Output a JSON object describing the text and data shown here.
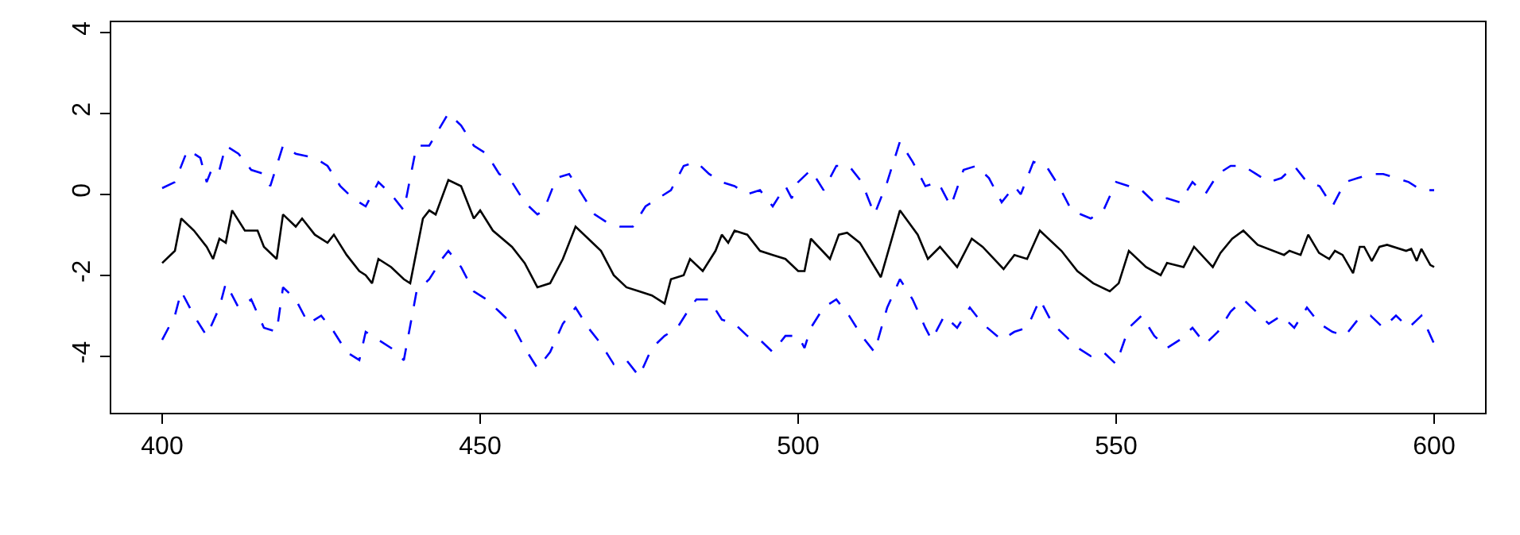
{
  "chart_data": {
    "type": "line",
    "xlim": [
      392,
      608
    ],
    "xticks": [
      400,
      450,
      500,
      550,
      600
    ],
    "ylim": [
      -5.4,
      4.25
    ],
    "yticks": [
      -4,
      -2,
      0,
      2,
      4
    ],
    "marker": "none",
    "series": [
      {
        "color": "#000000",
        "line_style": "solid",
        "x": [
          400,
          402,
          403,
          405,
          407,
          408,
          409,
          410,
          411,
          413,
          415,
          416,
          418,
          419,
          421,
          422,
          424,
          426,
          427,
          429,
          431,
          432,
          433,
          434,
          436,
          438,
          439,
          441,
          442,
          443,
          445,
          447,
          449,
          450,
          452,
          455,
          457,
          459,
          461,
          463,
          465,
          467,
          469,
          471,
          473,
          475,
          477,
          479,
          480,
          482,
          483,
          485,
          487,
          488,
          489,
          490,
          492,
          494,
          496,
          498,
          500,
          501,
          502,
          505,
          506.4,
          507.7,
          509.7,
          513,
          516,
          518.8,
          520.4,
          522.3,
          525,
          527.3,
          529,
          532.3,
          534,
          536,
          538,
          541.4,
          543.9,
          546.4,
          549,
          550.4,
          552,
          554.7,
          557,
          558,
          560.6,
          562.25,
          565.2,
          566.4,
          568.25,
          570,
          572.25,
          576.4,
          577.25,
          579,
          580.2,
          581.9,
          583.5,
          584.4,
          585.6,
          587.25,
          588.3,
          589,
          590.2,
          591.4,
          592.6,
          595.6,
          596.4,
          597.25,
          598,
          599.4,
          600
        ],
        "values": [
          -1.7,
          -1.4,
          -0.6,
          -0.9,
          -1.3,
          -1.6,
          -1.1,
          -1.2,
          -0.4,
          -0.9,
          -0.9,
          -1.3,
          -1.6,
          -0.5,
          -0.8,
          -0.6,
          -1.0,
          -1.2,
          -1.0,
          -1.5,
          -1.9,
          -2.0,
          -2.2,
          -1.6,
          -1.8,
          -2.1,
          -2.2,
          -0.6,
          -0.4,
          -0.5,
          0.35,
          0.2,
          -0.6,
          -0.4,
          -0.9,
          -1.3,
          -1.7,
          -2.3,
          -2.2,
          -1.6,
          -0.8,
          -1.1,
          -1.4,
          -2.0,
          -2.3,
          -2.4,
          -2.5,
          -2.7,
          -2.1,
          -2.0,
          -1.6,
          -1.9,
          -1.4,
          -1.0,
          -1.2,
          -0.9,
          -1.0,
          -1.4,
          -1.5,
          -1.6,
          -1.9,
          -1.9,
          -1.1,
          -1.6,
          -1.0,
          -0.95,
          -1.2,
          -2.05,
          -0.4,
          -1.0,
          -1.6,
          -1.3,
          -1.8,
          -1.1,
          -1.3,
          -1.85,
          -1.5,
          -1.6,
          -0.9,
          -1.4,
          -1.9,
          -2.2,
          -2.4,
          -2.2,
          -1.4,
          -1.8,
          -2.0,
          -1.7,
          -1.8,
          -1.3,
          -1.8,
          -1.45,
          -1.1,
          -0.9,
          -1.25,
          -1.5,
          -1.4,
          -1.5,
          -1.0,
          -1.45,
          -1.6,
          -1.4,
          -1.5,
          -1.95,
          -1.3,
          -1.3,
          -1.65,
          -1.3,
          -1.25,
          -1.4,
          -1.35,
          -1.65,
          -1.35,
          -1.75,
          -1.8
        ]
      },
      {
        "color": "#0000ff",
        "line_style": "dashed",
        "x": [
          400,
          402,
          404,
          406,
          407,
          408,
          409,
          410,
          412,
          414,
          416,
          417,
          419,
          421,
          424,
          426,
          428,
          430,
          432,
          434,
          436,
          438,
          440,
          442,
          445,
          447,
          449,
          451,
          453,
          455,
          457,
          459,
          460,
          462,
          464,
          466,
          468,
          470,
          472,
          474,
          476,
          478,
          480,
          482,
          484,
          486,
          488,
          490,
          492,
          494,
          496,
          498,
          499,
          500,
          502,
          504,
          506,
          508,
          510,
          512,
          514,
          516,
          518,
          520,
          522,
          524,
          526,
          528,
          530,
          532,
          534,
          535,
          537,
          539,
          541,
          543,
          546,
          548,
          550,
          552,
          554,
          556,
          558,
          560,
          562,
          564,
          566,
          568,
          570,
          572,
          574,
          576,
          578,
          580,
          582,
          584,
          586,
          588,
          590,
          592,
          594,
          596,
          598,
          600
        ],
        "values": [
          0.15,
          0.3,
          1.1,
          0.9,
          0.3,
          0.7,
          0.6,
          1.2,
          1.0,
          0.6,
          0.5,
          0.2,
          1.2,
          1.0,
          0.9,
          0.7,
          0.2,
          -0.1,
          -0.3,
          0.3,
          0.0,
          -0.4,
          1.2,
          1.2,
          2.0,
          1.7,
          1.2,
          1.0,
          0.5,
          0.3,
          -0.2,
          -0.5,
          -0.4,
          0.4,
          0.5,
          0.0,
          -0.5,
          -0.7,
          -0.8,
          -0.8,
          -0.3,
          -0.1,
          0.1,
          0.7,
          0.8,
          0.5,
          0.3,
          0.2,
          0.0,
          0.1,
          -0.3,
          0.2,
          -0.1,
          0.3,
          0.6,
          0.1,
          0.7,
          0.7,
          0.3,
          -0.5,
          0.3,
          1.3,
          0.8,
          0.2,
          0.3,
          -0.3,
          0.6,
          0.7,
          0.4,
          -0.2,
          0.2,
          0.0,
          0.8,
          0.7,
          0.2,
          -0.4,
          -0.6,
          -0.4,
          0.3,
          0.2,
          0.1,
          -0.2,
          -0.1,
          -0.2,
          0.3,
          0.0,
          0.5,
          0.7,
          0.7,
          0.5,
          0.3,
          0.4,
          0.7,
          0.3,
          0.2,
          -0.3,
          0.3,
          0.4,
          0.5,
          0.5,
          0.4,
          0.3,
          0.1,
          0.1
        ]
      },
      {
        "color": "#0000ff",
        "line_style": "dashed",
        "x": [
          400,
          402,
          403,
          405,
          407,
          409,
          410,
          412,
          414,
          416,
          418,
          419,
          421,
          423,
          425,
          427,
          429,
          431,
          432,
          434,
          436,
          438,
          440,
          442,
          444,
          445,
          447,
          449,
          451,
          453,
          455,
          457,
          459,
          461,
          463,
          465,
          467,
          469,
          471,
          473,
          475,
          477,
          479,
          481,
          483,
          484,
          486,
          488,
          490,
          492,
          494,
          496,
          498,
          500,
          501,
          502,
          504,
          506,
          508,
          510,
          512,
          514,
          516,
          518,
          520,
          521,
          523,
          525,
          527,
          529,
          532,
          534,
          536,
          538,
          540,
          542,
          544,
          546,
          548,
          550,
          552,
          554,
          556,
          558,
          560,
          562,
          564,
          566,
          568,
          570,
          572,
          574,
          576,
          578,
          580,
          582,
          584,
          586,
          588,
          590,
          592,
          594,
          596,
          598,
          600
        ],
        "values": [
          -3.6,
          -3.0,
          -2.4,
          -3.0,
          -3.5,
          -2.8,
          -2.2,
          -2.8,
          -2.6,
          -3.3,
          -3.4,
          -2.3,
          -2.6,
          -3.2,
          -3.0,
          -3.4,
          -3.9,
          -4.1,
          -3.4,
          -3.6,
          -3.8,
          -4.1,
          -2.4,
          -2.1,
          -1.6,
          -1.4,
          -1.8,
          -2.4,
          -2.6,
          -2.9,
          -3.2,
          -3.8,
          -4.3,
          -3.9,
          -3.2,
          -2.8,
          -3.3,
          -3.7,
          -4.2,
          -4.1,
          -4.5,
          -3.8,
          -3.5,
          -3.3,
          -2.8,
          -2.6,
          -2.6,
          -3.1,
          -3.2,
          -3.5,
          -3.6,
          -3.9,
          -3.5,
          -3.5,
          -3.8,
          -3.3,
          -2.8,
          -2.6,
          -3.0,
          -3.5,
          -3.9,
          -2.8,
          -2.1,
          -2.6,
          -3.3,
          -3.6,
          -3.0,
          -3.3,
          -2.8,
          -3.2,
          -3.6,
          -3.4,
          -3.3,
          -2.6,
          -3.2,
          -3.5,
          -3.8,
          -4.0,
          -3.9,
          -4.2,
          -3.3,
          -3.0,
          -3.5,
          -3.8,
          -3.6,
          -3.3,
          -3.7,
          -3.4,
          -2.9,
          -2.6,
          -2.9,
          -3.2,
          -3.0,
          -3.3,
          -2.8,
          -3.2,
          -3.4,
          -3.5,
          -3.1,
          -3.0,
          -3.3,
          -3.0,
          -3.3,
          -3.0,
          -3.7
        ]
      }
    ]
  }
}
